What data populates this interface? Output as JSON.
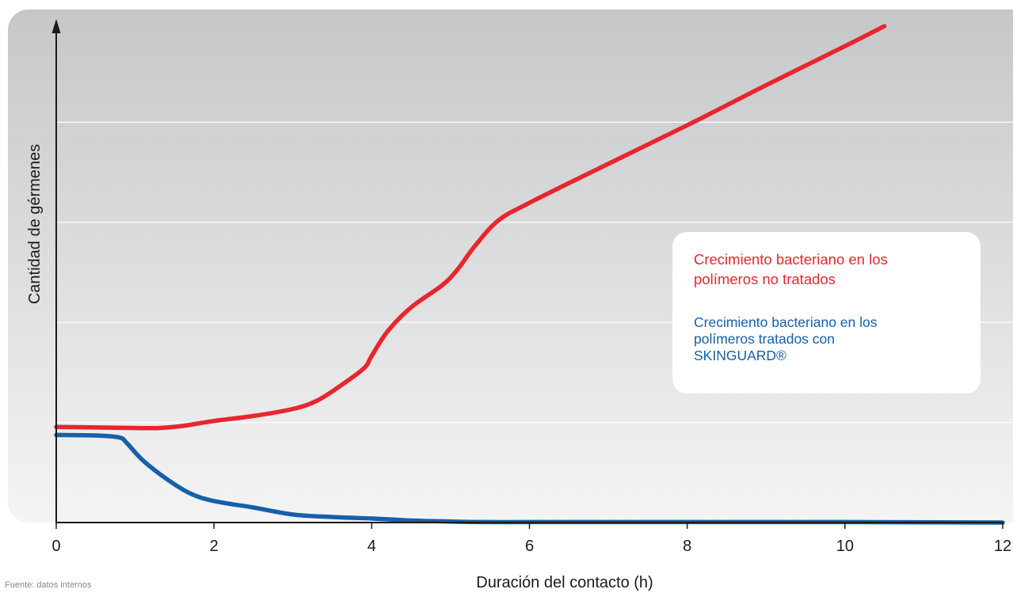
{
  "chart_data": {
    "type": "line",
    "xlabel": "Duración del contacto (h)",
    "ylabel": "Cantidad de gérmenes",
    "xlim": [
      0,
      12
    ],
    "ylim": [
      0,
      100
    ],
    "x_ticks": [
      "0",
      "2",
      "4",
      "6",
      "8",
      "10",
      "12"
    ],
    "grid": "horizontal",
    "legend_position": "right",
    "series": [
      {
        "name": "Crecimiento bacteriano en los polímeros no tratados",
        "color": "#e8262d",
        "x": [
          0,
          0.5,
          1.0,
          1.3,
          1.6,
          2.0,
          2.5,
          3.0,
          3.3,
          3.6,
          3.9,
          4.0,
          4.2,
          4.5,
          4.9,
          5.1,
          5.3,
          5.6,
          6.0,
          7.0,
          8.0,
          9.0,
          10.0,
          10.5
        ],
        "values": [
          19.1,
          19.0,
          18.9,
          18.9,
          19.3,
          20.3,
          21.3,
          22.7,
          24.3,
          27.3,
          30.8,
          33.3,
          38.2,
          43.0,
          47.5,
          50.8,
          55.1,
          60.3,
          63.9,
          71.7,
          79.4,
          87.4,
          95.2,
          99.2
        ]
      },
      {
        "name": "Crecimiento bacteriano en los polímeros tratados con SKINGUARD®",
        "color": "#1560a8",
        "x": [
          0,
          0.5,
          0.8,
          0.9,
          1.1,
          1.4,
          1.7,
          2.0,
          2.5,
          3.0,
          3.5,
          4.0,
          4.5,
          5.0,
          5.5,
          6.0,
          8.0,
          10.0,
          12.0
        ],
        "values": [
          17.5,
          17.4,
          17.0,
          15.8,
          12.4,
          8.7,
          5.8,
          4.3,
          3.0,
          1.6,
          1.1,
          0.8,
          0.4,
          0.2,
          0.1,
          0.1,
          0.1,
          0.1,
          0.0
        ]
      }
    ],
    "footnote": "Fuente: datos internos"
  }
}
